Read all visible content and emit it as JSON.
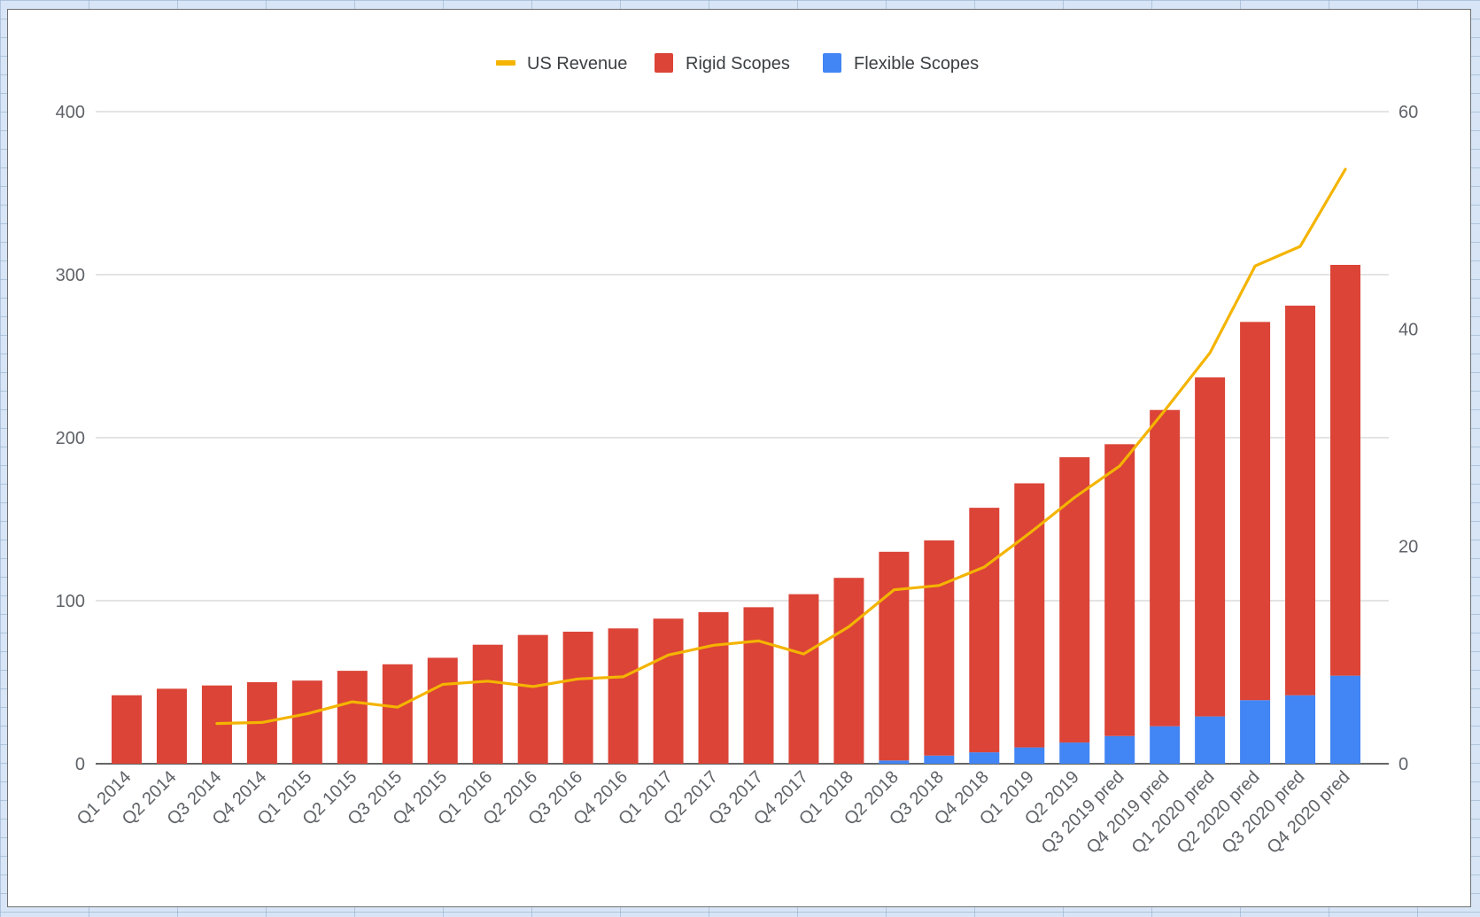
{
  "chart_data": {
    "type": "bar",
    "stacked": true,
    "categories": [
      "Q1 2014",
      "Q2 2014",
      "Q3 2014",
      "Q4 2014",
      "Q1 2015",
      "Q2 1015",
      "Q3 2015",
      "Q4 2015",
      "Q1 2016",
      "Q2 2016",
      "Q3 2016",
      "Q4 2016",
      "Q1 2017",
      "Q2 2017",
      "Q3 2017",
      "Q4 2017",
      "Q1 2018",
      "Q2 2018",
      "Q3 2018",
      "Q4 2018",
      "Q1 2019",
      "Q2 2019",
      "Q3 2019 pred",
      "Q4 2019 pred",
      "Q1 2020 pred",
      "Q2 2020 pred",
      "Q3 2020 pred",
      "Q4 2020 pred"
    ],
    "series": [
      {
        "name": "Rigid Scopes",
        "type": "bar",
        "axis": "left",
        "color": "#db4437",
        "values": [
          42,
          46,
          48,
          50,
          51,
          57,
          61,
          65,
          73,
          79,
          81,
          83,
          89,
          93,
          96,
          104,
          114,
          128,
          132,
          150,
          162,
          175,
          179,
          194,
          208,
          232,
          239,
          252
        ]
      },
      {
        "name": "Flexible Scopes",
        "type": "bar",
        "axis": "left",
        "color": "#4285f4",
        "values": [
          0,
          0,
          0,
          0,
          0,
          0,
          0,
          0,
          0,
          0,
          0,
          0,
          0,
          0,
          0,
          0,
          0,
          2,
          5,
          7,
          10,
          13,
          17,
          23,
          29,
          39,
          42,
          54
        ]
      },
      {
        "name": "US Revenue",
        "type": "line",
        "axis": "right",
        "color": "#f4b400",
        "values": [
          null,
          null,
          3.7,
          3.8,
          4.6,
          5.7,
          5.2,
          7.3,
          7.6,
          7.1,
          7.8,
          8.0,
          10.0,
          10.9,
          11.3,
          10.1,
          12.6,
          16.0,
          16.4,
          18.1,
          21.2,
          24.5,
          27.4,
          32.5,
          37.8,
          45.8,
          47.6,
          54.7
        ]
      }
    ],
    "y_left": {
      "min": 0,
      "max": 400,
      "ticks": [
        0,
        100,
        200,
        300,
        400
      ]
    },
    "y_right": {
      "min": 0,
      "max": 60,
      "ticks": [
        0,
        20,
        40,
        60
      ]
    },
    "grid": true,
    "legend_position": "top",
    "legend": [
      "US Revenue",
      "Rigid Scopes",
      "Flexible Scopes"
    ]
  }
}
